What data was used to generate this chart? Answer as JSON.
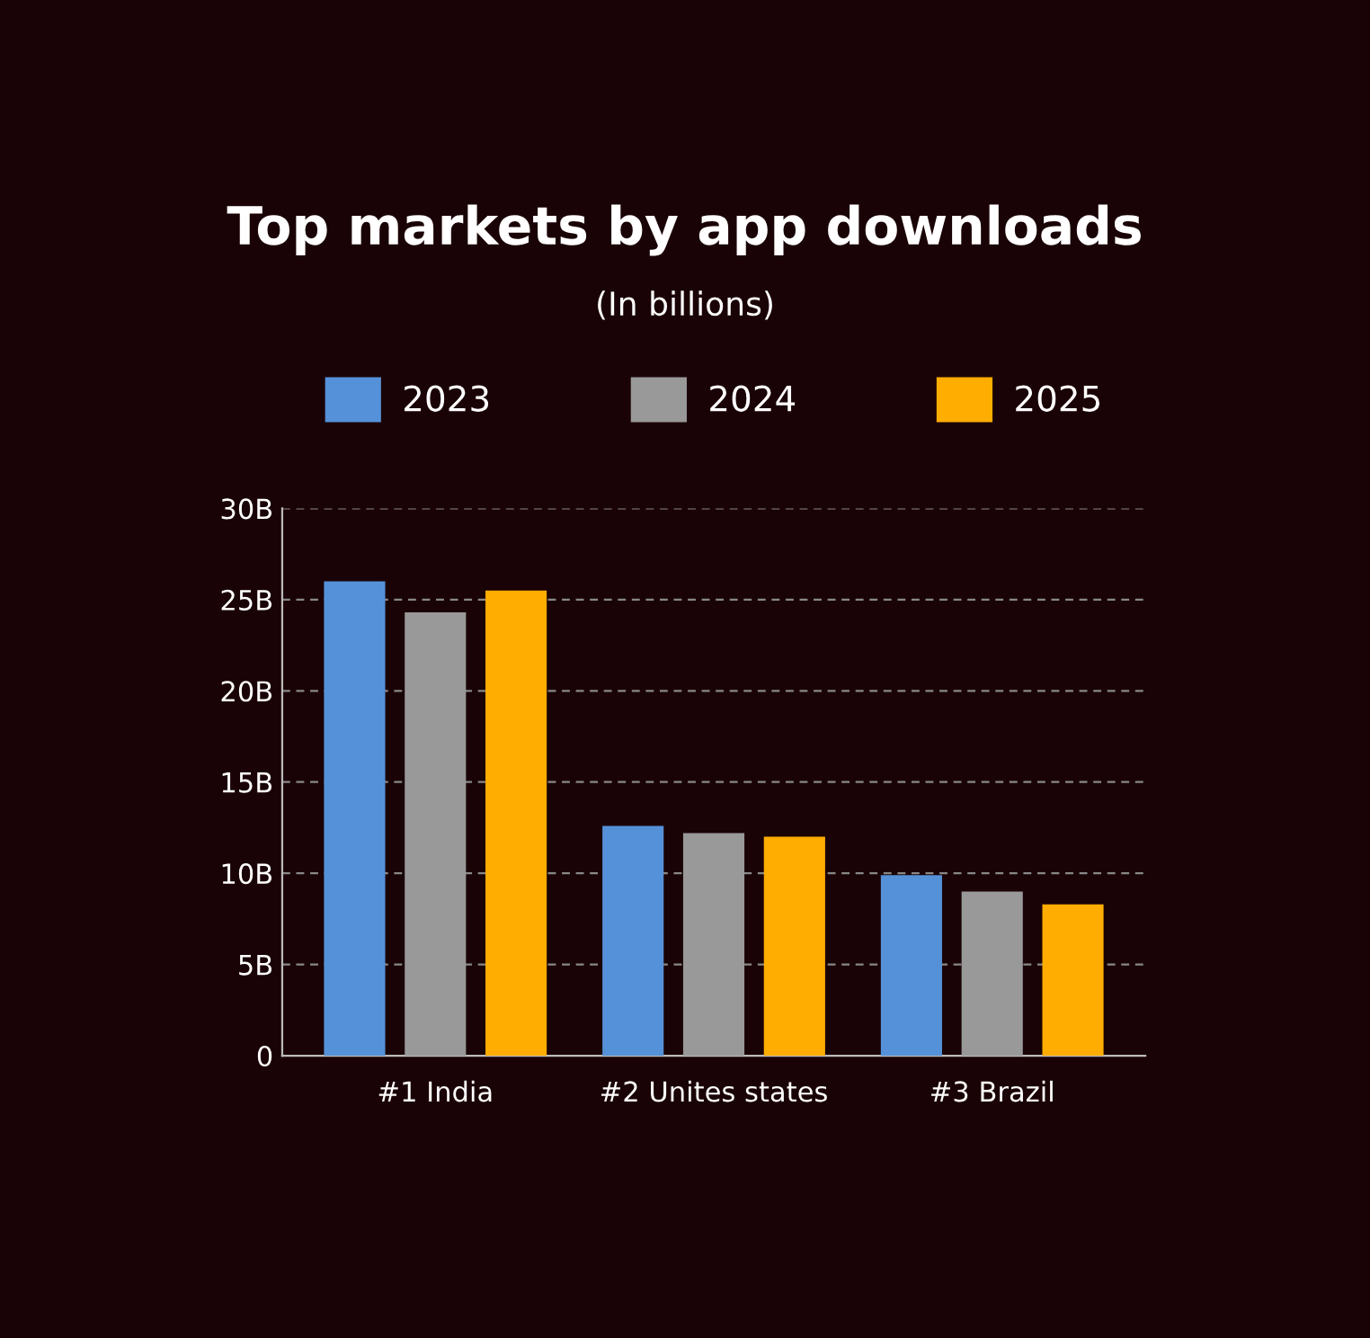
{
  "chart_data": {
    "type": "bar",
    "title": "Top markets by app downloads",
    "subtitle": "(In billions)",
    "categories": [
      "#1 India",
      "#2 Unites states",
      "#3 Brazil"
    ],
    "series": [
      {
        "name": "2023",
        "color": "#5591d8",
        "values": [
          26.0,
          12.6,
          9.9
        ]
      },
      {
        "name": "2024",
        "color": "#999999",
        "values": [
          24.3,
          12.2,
          9.0
        ]
      },
      {
        "name": "2025",
        "color": "#ffad00",
        "values": [
          25.5,
          12.0,
          8.3
        ]
      }
    ],
    "ylim": [
      0,
      30
    ],
    "yticks": [
      0,
      {
        "value": 5,
        "label": "5B"
      },
      {
        "value": 10,
        "label": "10B"
      },
      {
        "value": 15,
        "label": "15B"
      },
      {
        "value": 20,
        "label": "20B"
      },
      {
        "value": 25,
        "label": "25B"
      },
      {
        "value": 30,
        "label": "30B"
      }
    ],
    "grid": "y",
    "legend": "top"
  }
}
